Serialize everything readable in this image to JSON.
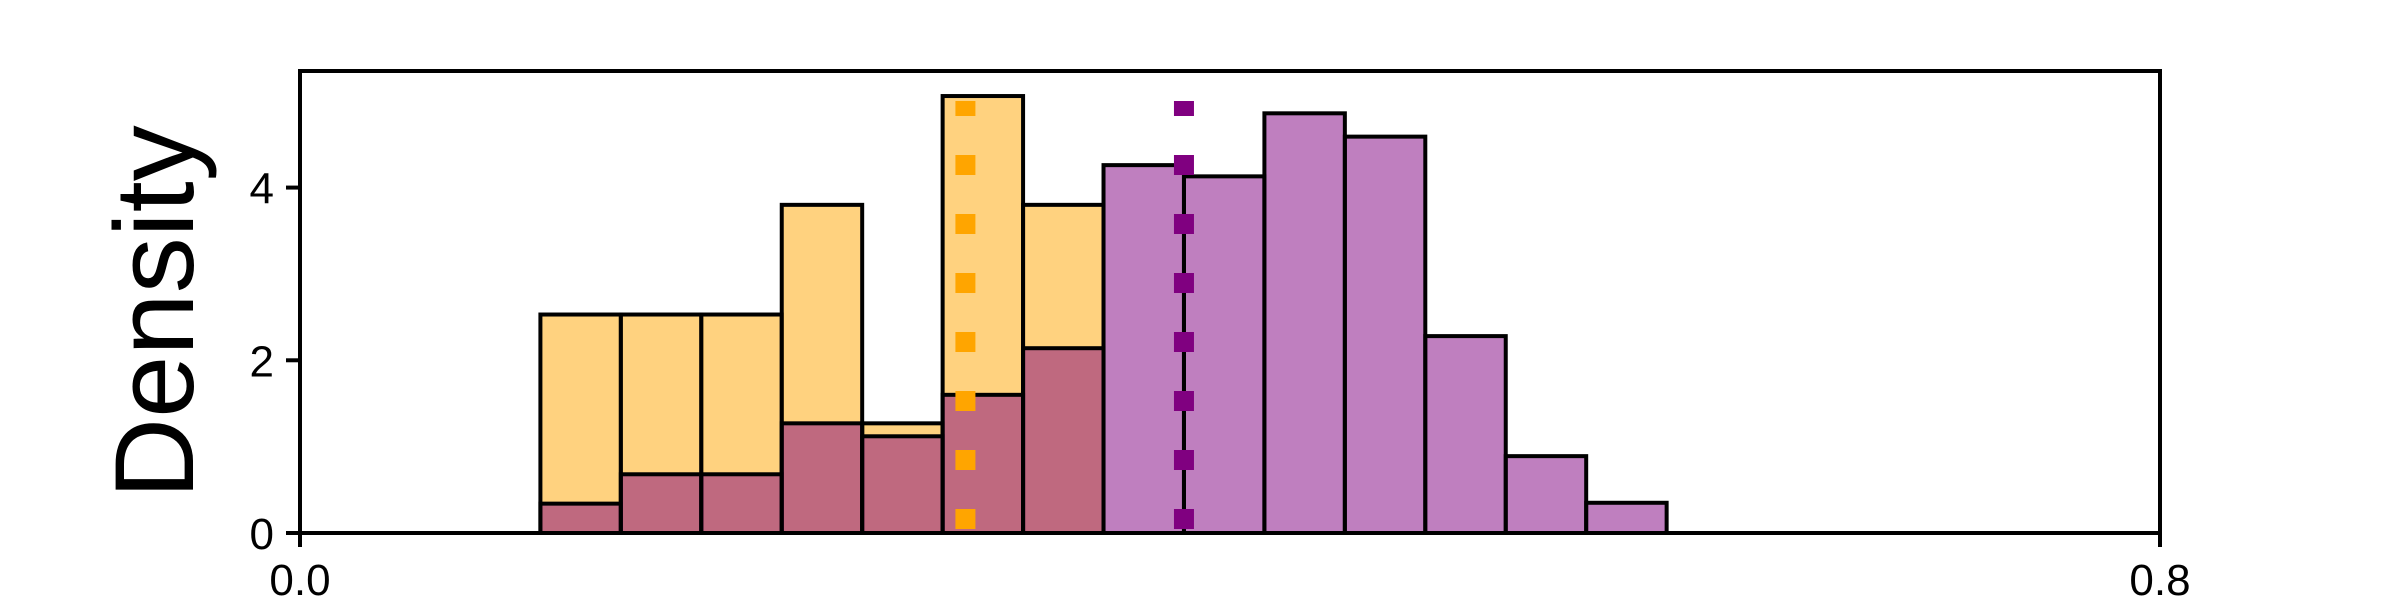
{
  "chart_data": {
    "type": "bar",
    "title": "",
    "xlabel": "",
    "ylabel": "Density",
    "xlim": [
      0.0,
      0.8
    ],
    "ylim": [
      0,
      5.35
    ],
    "x_ticks": [
      0.0,
      0.8
    ],
    "x_tick_labels": [
      "0.0",
      "0.8"
    ],
    "y_ticks": [
      0,
      2,
      4
    ],
    "y_tick_labels": [
      "0",
      "2",
      "4"
    ],
    "grid": false,
    "legend": "none",
    "histogram": true,
    "bin_edges": [
      0.1034,
      0.138,
      0.1726,
      0.2072,
      0.2418,
      0.2764,
      0.311,
      0.3456,
      0.3802,
      0.4148,
      0.4494,
      0.484,
      0.5186,
      0.5532,
      0.5878
    ],
    "series": [
      {
        "color": "#FFA500",
        "alpha": 0.5,
        "values": [
          2.53,
          2.53,
          2.53,
          3.8,
          1.27,
          5.06,
          3.8,
          0,
          0,
          0,
          0,
          0,
          0,
          0
        ],
        "mean_line": 0.2862
      },
      {
        "color": "#800080",
        "alpha": 0.5,
        "values": [
          0.34,
          0.68,
          0.68,
          1.27,
          1.12,
          1.6,
          2.14,
          4.26,
          4.13,
          4.86,
          4.59,
          2.28,
          0.89,
          0.35
        ],
        "mean_line": 0.3802
      }
    ]
  }
}
